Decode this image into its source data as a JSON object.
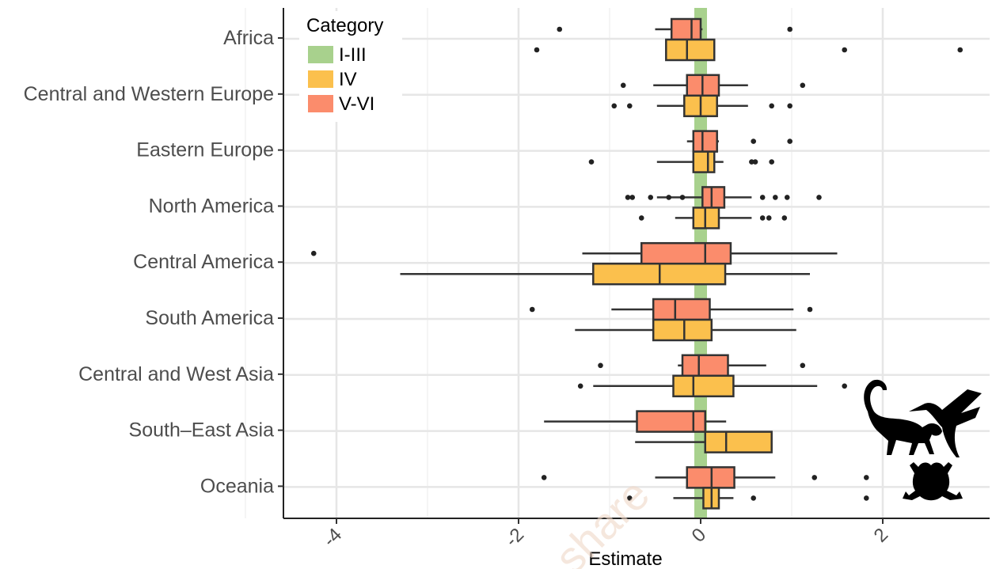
{
  "chart_data": {
    "type": "boxplot",
    "orientation": "horizontal",
    "xlabel": "Estimate",
    "ylabel": "",
    "xlim": [
      -4.6,
      3.2
    ],
    "xticks": [
      -4,
      -2,
      0,
      2
    ],
    "xtick_labels": [
      "-4",
      "-2",
      "0",
      "2"
    ],
    "grid": true,
    "reference_band": {
      "center": 0,
      "color": "#a8d18d"
    },
    "legend": {
      "title": "Category",
      "position": "top-left",
      "entries": [
        {
          "label": "I-III",
          "color": "#a8d18d"
        },
        {
          "label": "IV",
          "color": "#fbc04d"
        },
        {
          "label": "V-VI",
          "color": "#fb8c6c"
        }
      ]
    },
    "categories": [
      "Africa",
      "Central and Western Europe",
      "Eastern Europe",
      "North America",
      "Central America",
      "South America",
      "Central and West Asia",
      "South–East Asia",
      "Oceania"
    ],
    "series": [
      {
        "name": "V-VI",
        "color": "#fb8c6c",
        "boxes": [
          {
            "whislo": -0.5,
            "q1": -0.32,
            "med": -0.1,
            "q3": 0.0,
            "whishi": 0.02,
            "outliers": [
              -1.55,
              0.98
            ]
          },
          {
            "whislo": -0.52,
            "q1": -0.15,
            "med": 0.02,
            "q3": 0.2,
            "whishi": 0.52,
            "outliers": [
              -0.85,
              1.12
            ]
          },
          {
            "whislo": -0.15,
            "q1": -0.08,
            "med": 0.02,
            "q3": 0.18,
            "whishi": 0.2,
            "outliers": [
              0.58,
              0.98
            ]
          },
          {
            "whislo": -0.48,
            "q1": 0.02,
            "med": 0.12,
            "q3": 0.26,
            "whishi": 0.56,
            "outliers": [
              -0.8,
              -0.75,
              -0.55,
              -0.35,
              -0.2,
              0.68,
              0.82,
              0.95,
              1.3
            ]
          },
          {
            "whislo": -1.3,
            "q1": -0.65,
            "med": 0.05,
            "q3": 0.33,
            "whishi": 1.5,
            "outliers": [
              -4.25
            ]
          },
          {
            "whislo": -0.98,
            "q1": -0.52,
            "med": -0.28,
            "q3": 0.1,
            "whishi": 1.02,
            "outliers": [
              -1.85,
              1.2
            ]
          },
          {
            "whislo": -0.25,
            "q1": -0.2,
            "med": -0.02,
            "q3": 0.3,
            "whishi": 0.72,
            "outliers": [
              -1.1,
              1.12
            ]
          },
          {
            "whislo": -1.72,
            "q1": -0.7,
            "med": -0.08,
            "q3": 0.05,
            "whishi": 0.28,
            "outliers": []
          },
          {
            "whislo": -0.5,
            "q1": -0.15,
            "med": 0.12,
            "q3": 0.37,
            "whishi": 0.82,
            "outliers": [
              -1.72,
              1.25,
              1.82
            ]
          }
        ]
      },
      {
        "name": "IV",
        "color": "#fbc04d",
        "boxes": [
          {
            "whislo": -0.38,
            "q1": -0.38,
            "med": -0.15,
            "q3": 0.15,
            "whishi": 0.15,
            "outliers": [
              -1.8,
              1.58,
              2.85
            ]
          },
          {
            "whislo": -0.48,
            "q1": -0.18,
            "med": 0.0,
            "q3": 0.18,
            "whishi": 0.52,
            "outliers": [
              -0.95,
              -0.78,
              0.78,
              0.98
            ]
          },
          {
            "whislo": -0.48,
            "q1": -0.08,
            "med": 0.08,
            "q3": 0.15,
            "whishi": 0.25,
            "outliers": [
              -1.2,
              0.56,
              0.6,
              0.78
            ]
          },
          {
            "whislo": -0.28,
            "q1": -0.08,
            "med": 0.05,
            "q3": 0.2,
            "whishi": 0.56,
            "outliers": [
              -0.65,
              0.68,
              0.75,
              0.92
            ]
          },
          {
            "whislo": -3.3,
            "q1": -1.18,
            "med": -0.45,
            "q3": 0.27,
            "whishi": 1.2,
            "outliers": []
          },
          {
            "whislo": -1.38,
            "q1": -0.52,
            "med": -0.18,
            "q3": 0.12,
            "whishi": 1.05,
            "outliers": []
          },
          {
            "whislo": -1.18,
            "q1": -0.3,
            "med": -0.08,
            "q3": 0.36,
            "whishi": 1.28,
            "outliers": [
              -1.32,
              1.58
            ]
          },
          {
            "whislo": -0.72,
            "q1": 0.05,
            "med": 0.28,
            "q3": 0.78,
            "whishi": 0.78,
            "outliers": []
          },
          {
            "whislo": -0.3,
            "q1": 0.03,
            "med": 0.12,
            "q3": 0.2,
            "whishi": 0.36,
            "outliers": [
              -0.78,
              0.58,
              1.82
            ]
          }
        ]
      }
    ]
  },
  "watermark": "share"
}
